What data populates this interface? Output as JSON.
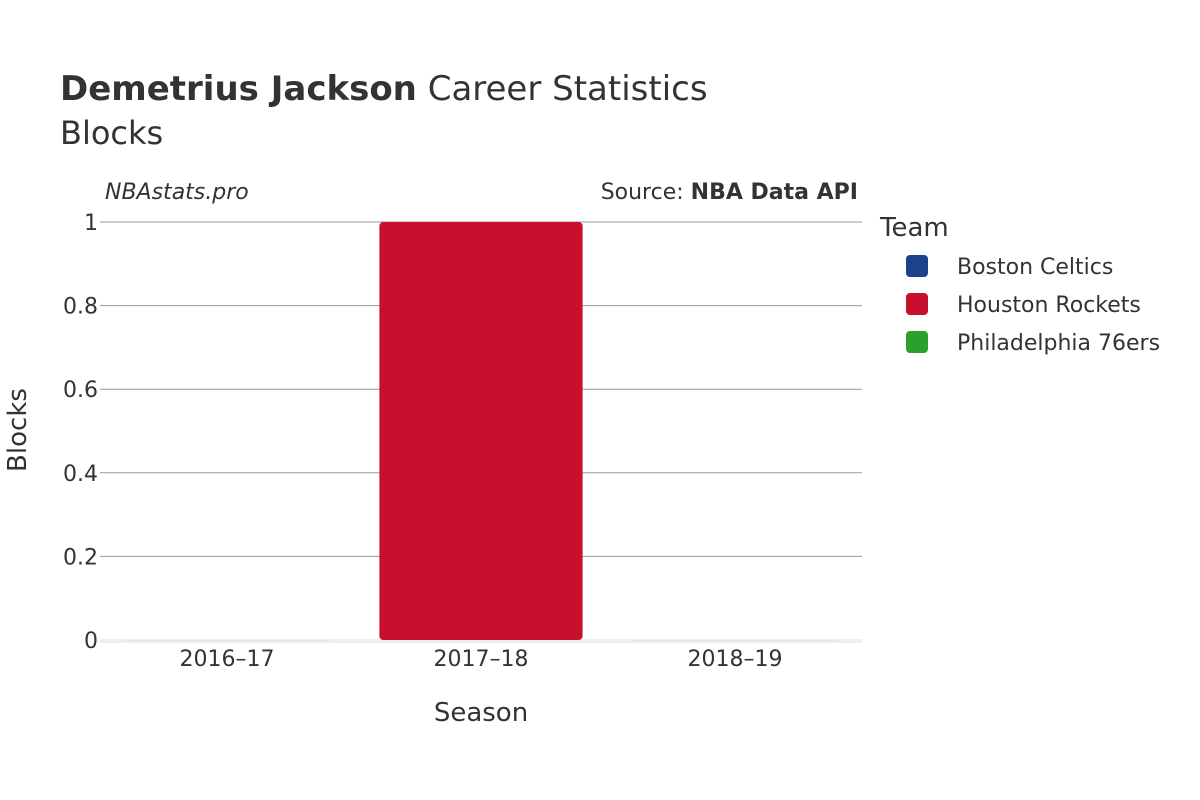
{
  "chart_data": {
    "type": "bar",
    "title": {
      "player": "Demetrius Jackson",
      "suffix": "Career Statistics",
      "subtitle": "Blocks"
    },
    "watermark": "NBAstats.pro",
    "source": {
      "prefix": "Source: ",
      "name": "NBA Data API"
    },
    "xlabel": "Season",
    "ylabel": "Blocks",
    "categories": [
      "2016–17",
      "2017–18",
      "2018–19"
    ],
    "ylim": [
      0,
      1
    ],
    "yticks": [
      0,
      0.2,
      0.4,
      0.6,
      0.8,
      1
    ],
    "ytick_labels": [
      "0",
      "0.2",
      "0.4",
      "0.6",
      "0.8",
      "1"
    ],
    "grid": true,
    "legend": {
      "title": "Team",
      "placement": "right"
    },
    "series": [
      {
        "name": "Boston Celtics",
        "color": "#1d428a",
        "values": [
          0,
          null,
          null
        ]
      },
      {
        "name": "Houston Rockets",
        "color": "#c8102e",
        "values": [
          null,
          1,
          null
        ]
      },
      {
        "name": "Philadelphia 76ers",
        "color": "#2ca02c",
        "values": [
          null,
          null,
          0
        ]
      }
    ]
  }
}
